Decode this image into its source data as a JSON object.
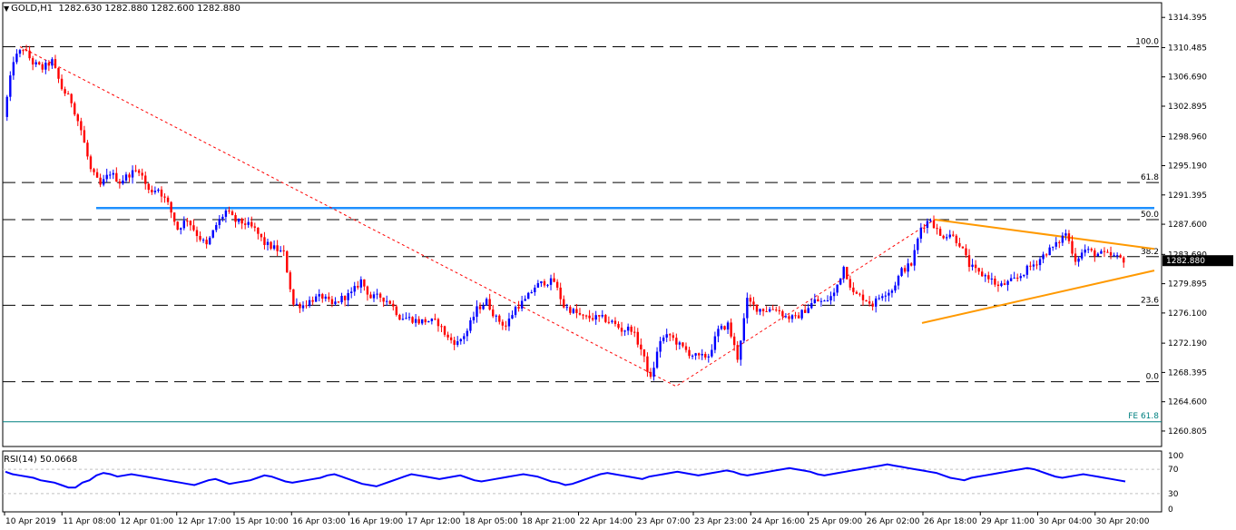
{
  "header": {
    "symbol": "GOLD,H1",
    "ohlc": "1282.630 1282.880 1282.600 1282.880"
  },
  "rsi": {
    "label": "RSI(14) 50.0668",
    "levels": [
      70,
      30
    ],
    "ticks": [
      "100",
      "70",
      "30",
      "0"
    ],
    "values": [
      66,
      62,
      60,
      58,
      56,
      52,
      50,
      48,
      44,
      40,
      40,
      48,
      52,
      60,
      64,
      62,
      58,
      60,
      62,
      60,
      58,
      56,
      54,
      52,
      50,
      48,
      46,
      44,
      48,
      52,
      54,
      50,
      46,
      48,
      50,
      52,
      56,
      60,
      58,
      54,
      50,
      48,
      50,
      52,
      54,
      56,
      60,
      62,
      58,
      54,
      50,
      46,
      44,
      42,
      46,
      50,
      54,
      58,
      62,
      60,
      58,
      56,
      54,
      56,
      58,
      60,
      56,
      52,
      50,
      52,
      54,
      56,
      58,
      60,
      62,
      60,
      58,
      54,
      50,
      48,
      44,
      46,
      50,
      54,
      58,
      62,
      64,
      62,
      60,
      58,
      56,
      54,
      58,
      60,
      62,
      64,
      66,
      64,
      62,
      60,
      62,
      64,
      66,
      68,
      66,
      62,
      60,
      62,
      64,
      66,
      68,
      70,
      72,
      70,
      68,
      66,
      62,
      60,
      62,
      64,
      66,
      68,
      70,
      72,
      74,
      76,
      78,
      76,
      74,
      72,
      70,
      68,
      66,
      64,
      60,
      56,
      54,
      52,
      56,
      58,
      60,
      62,
      64,
      66,
      68,
      70,
      72,
      70,
      66,
      62,
      58,
      56,
      58,
      60,
      62,
      60,
      58,
      56,
      54,
      52,
      50
    ],
    "color": "#0000ff"
  },
  "colors": {
    "bull": "#0000ff",
    "bear": "#ff0000",
    "fib": "#ff0000",
    "triangle": "#ff9900",
    "resistance": "#1e90ff",
    "fe": "#008080",
    "price_tag_bg": "#000000"
  },
  "chart_data": {
    "type": "candlestick",
    "title": "GOLD,H1 1282.630 1282.880 1282.600 1282.880",
    "ylim": [
      1258.8,
      1316.3
    ],
    "y_ticks": [
      1314.395,
      1310.485,
      1306.69,
      1302.895,
      1298.96,
      1295.19,
      1291.395,
      1287.6,
      1283.69,
      1279.895,
      1276.1,
      1272.19,
      1268.395,
      1264.6,
      1260.805
    ],
    "y_tick_labels": [
      "1314.395",
      "1310.485",
      "1306.690",
      "1302.895",
      "1298.960",
      "1295.190",
      "1291.395",
      "1287.600",
      "1283.690",
      "1279.895",
      "1276.100",
      "1272.190",
      "1268.395",
      "1264.600",
      "1260.805"
    ],
    "x_tick_labels": [
      "10 Apr 2019",
      "11 Apr 08:00",
      "12 Apr 01:00",
      "12 Apr 17:00",
      "15 Apr 10:00",
      "16 Apr 03:00",
      "16 Apr 19:00",
      "17 Apr 12:00",
      "18 Apr 05:00",
      "18 Apr 21:00",
      "22 Apr 14:00",
      "23 Apr 07:00",
      "23 Apr 23:00",
      "24 Apr 16:00",
      "25 Apr 09:00",
      "26 Apr 02:00",
      "26 Apr 18:00",
      "29 Apr 11:00",
      "30 Apr 04:00",
      "30 Apr 20:00"
    ],
    "current_price": "1282.880",
    "fib_levels": [
      {
        "label": "100.0",
        "value": 1310.6
      },
      {
        "label": "61.8",
        "value": 1293.0
      },
      {
        "label": "50.0",
        "value": 1288.2
      },
      {
        "label": "38.2",
        "value": 1283.4
      },
      {
        "label": "23.6",
        "value": 1277.1
      },
      {
        "label": "0.0",
        "value": 1267.2
      }
    ],
    "fe_level": {
      "label": "FE 61.8",
      "value": 1262.0
    },
    "resistance_level": 1289.7,
    "path": [
      1301.5,
      1308.9,
      1310.4,
      1308.5,
      1307.8,
      1308.7,
      1305.2,
      1303.5,
      1299.8,
      1294.6,
      1292.6,
      1294.3,
      1293.1,
      1294.1,
      1294.7,
      1291.9,
      1292.2,
      1290.2,
      1287.0,
      1288.3,
      1286.3,
      1284.8,
      1287.5,
      1289.3,
      1288.0,
      1287.7,
      1286.9,
      1285.1,
      1284.5,
      1283.8,
      1277.2,
      1277.1,
      1277.9,
      1278.2,
      1277.1,
      1278.0,
      1278.6,
      1280.3,
      1278.1,
      1278.2,
      1277.5,
      1275.6,
      1275.4,
      1275.0,
      1275.1,
      1274.8,
      1272.8,
      1272.2,
      1273.8,
      1276.6,
      1277.6,
      1275.4,
      1274.4,
      1276.8,
      1277.7,
      1279.5,
      1280.1,
      1280.2,
      1277.0,
      1276.3,
      1275.5,
      1275.5,
      1275.4,
      1274.9,
      1273.9,
      1274.1,
      1271.4,
      1267.5,
      1272.6,
      1273.2,
      1271.9,
      1270.9,
      1270.3,
      1270.6,
      1273.8,
      1274.6,
      1270.3,
      1277.7,
      1276.7,
      1276.5,
      1276.7,
      1275.6,
      1275.4,
      1276.5,
      1277.7,
      1277.5,
      1278.6,
      1282.1,
      1278.6,
      1278.1,
      1277.2,
      1278.6,
      1279.1,
      1281.6,
      1282.4,
      1287.2,
      1288.3,
      1286.0,
      1286.4,
      1285.1,
      1282.3,
      1281.2,
      1280.8,
      1279.5,
      1280.0,
      1280.6,
      1281.8,
      1282.7,
      1284.0,
      1284.9,
      1286.5,
      1283.0,
      1284.3,
      1283.8,
      1283.7,
      1283.4,
      1283.0
    ]
  }
}
